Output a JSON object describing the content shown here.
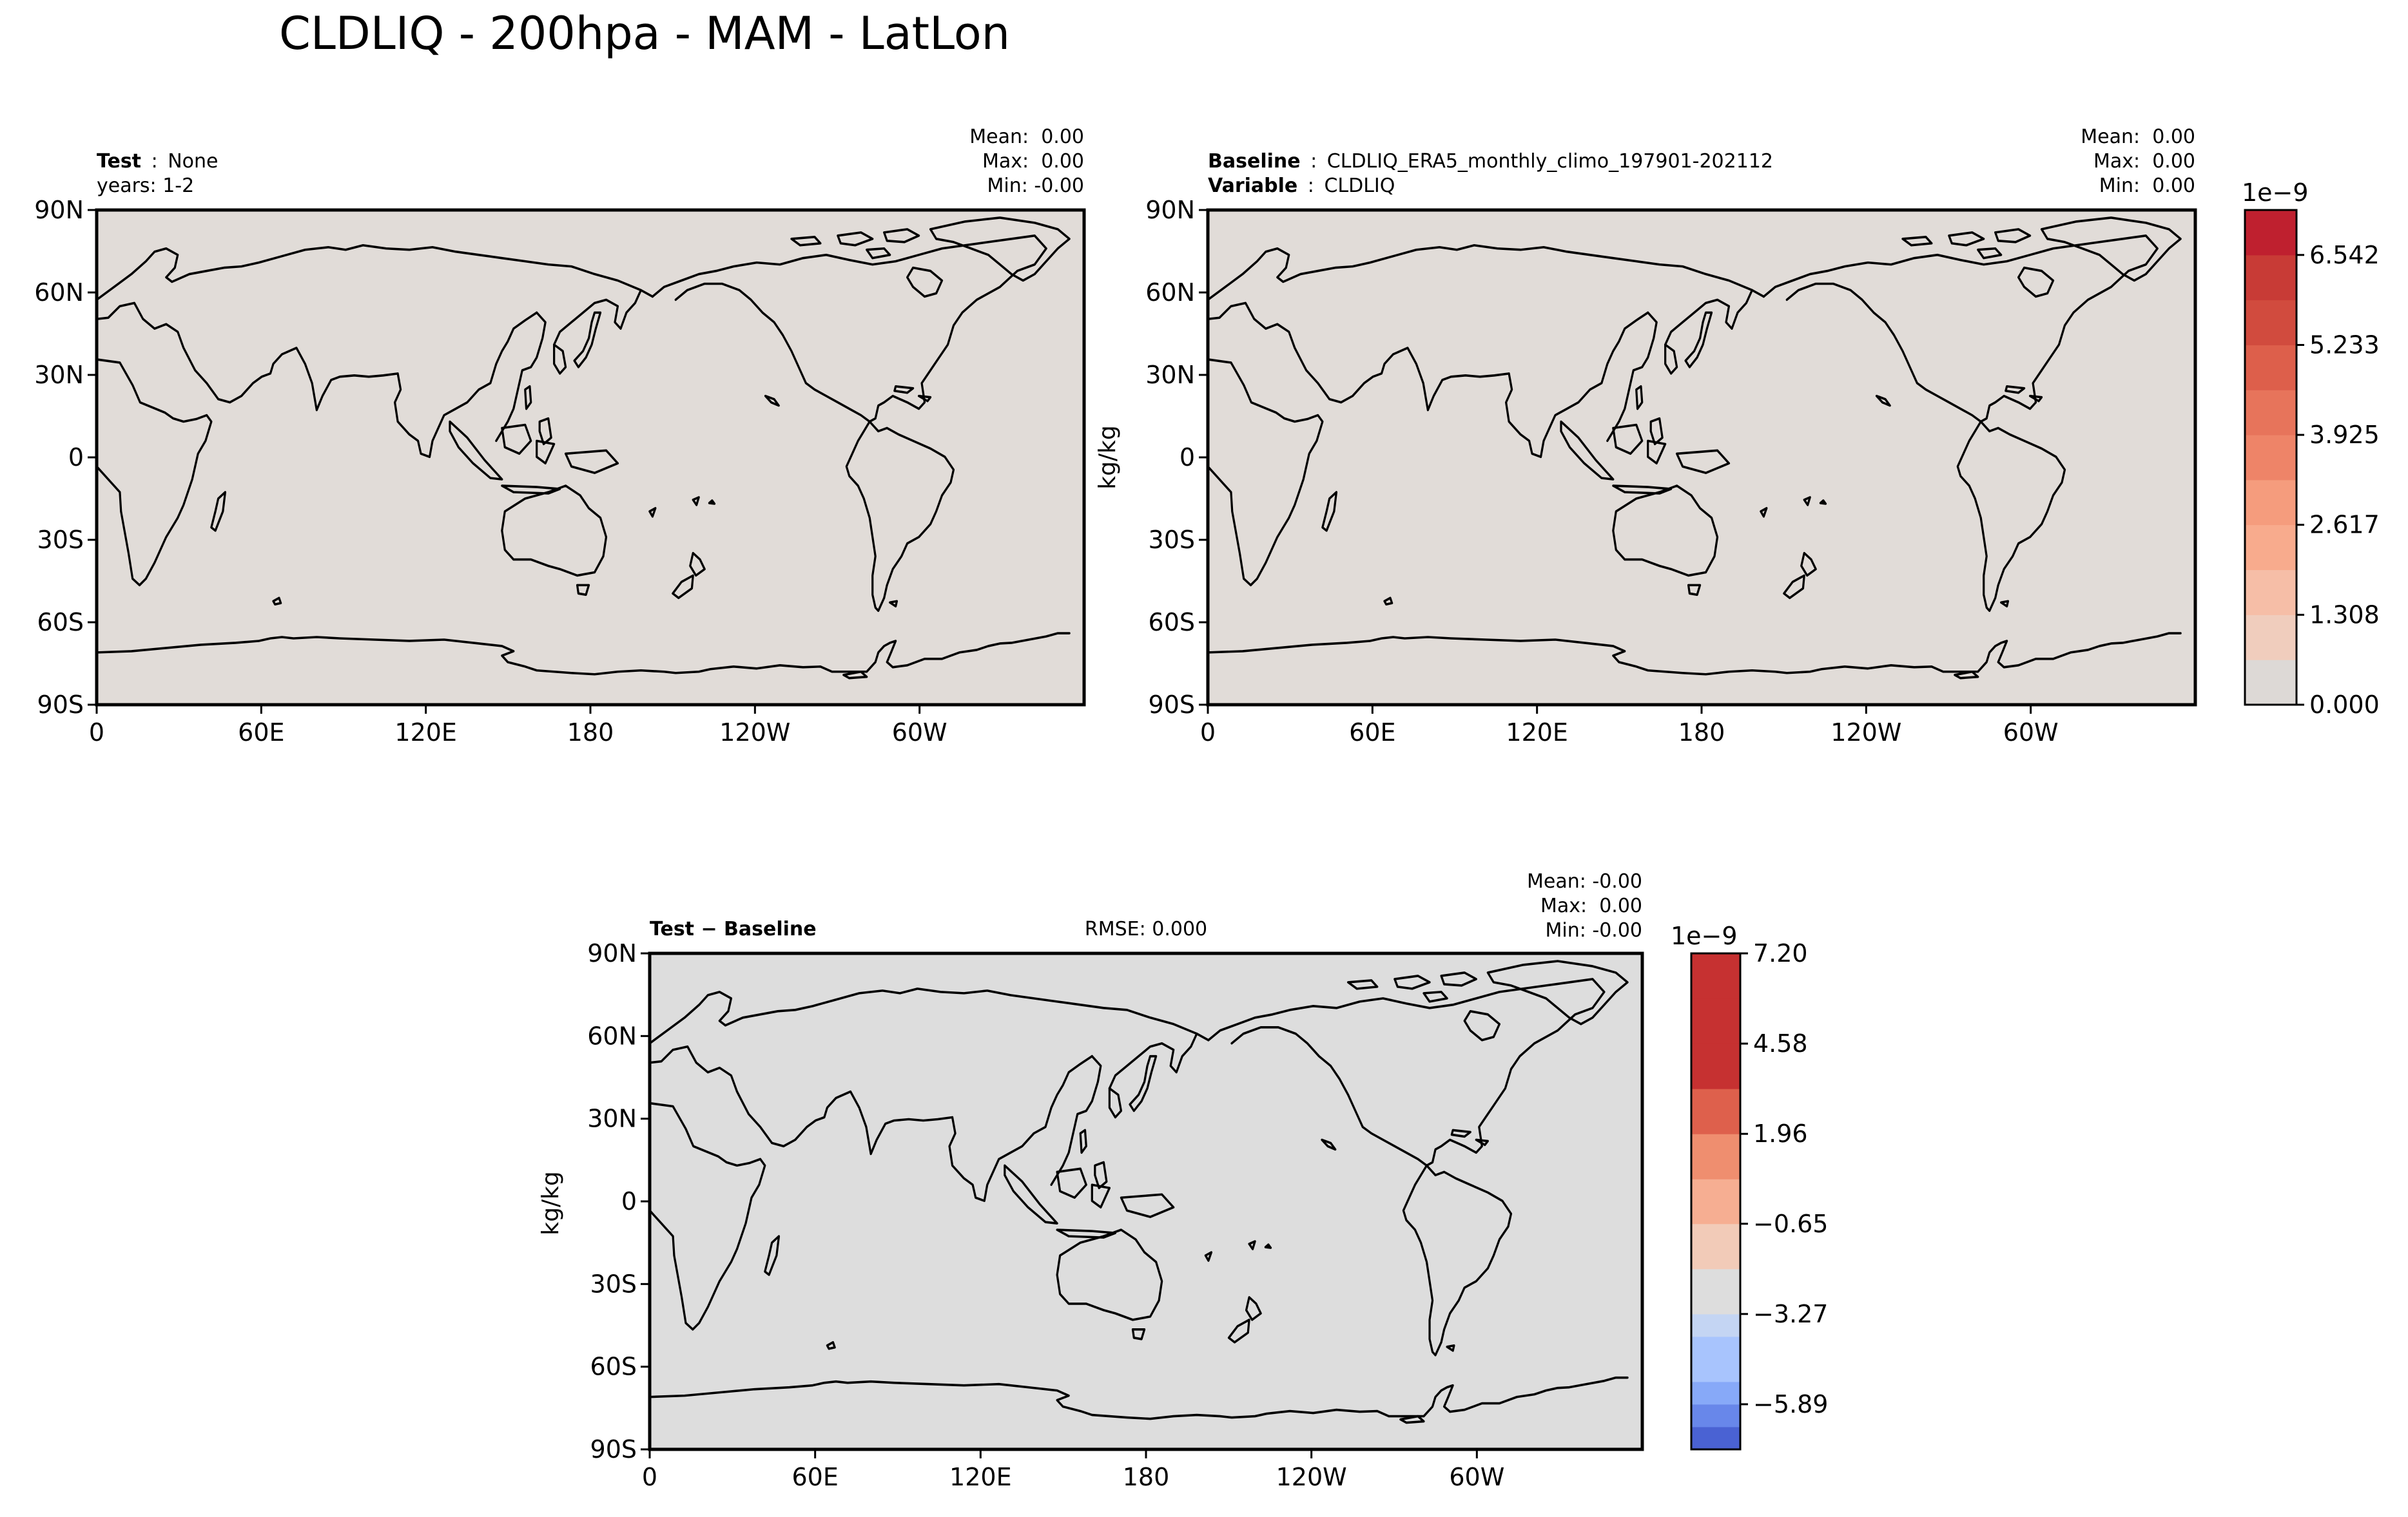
{
  "figure": {
    "title": "CLDLIQ - 200hpa - MAM - LatLon"
  },
  "chart_data": [
    {
      "type": "heatmap",
      "id": "test",
      "panel_label_bold": "Test",
      "panel_label_sep": ":",
      "panel_label_value": "None",
      "panel_label_line2": "years: 1-2",
      "stats": [
        "Mean:  0.00",
        "Max:  0.00",
        "Min: -0.00"
      ],
      "field_value": 0.0,
      "xlabel": "",
      "ylabel": "",
      "x_ticks": [
        "0",
        "60E",
        "120E",
        "180",
        "120W",
        "60W"
      ],
      "x_tick_lon": [
        0,
        60,
        120,
        180,
        240,
        300
      ],
      "xlim": [
        0,
        360
      ],
      "y_ticks": [
        "90N",
        "60N",
        "30N",
        "0",
        "30S",
        "60S",
        "90S"
      ],
      "y_tick_lat": [
        90,
        60,
        30,
        0,
        -30,
        -60,
        -90
      ],
      "ylim": [
        -90,
        90
      ]
    },
    {
      "type": "heatmap",
      "id": "baseline",
      "panel_label_bold": "Baseline",
      "panel_label_sep": ":",
      "panel_label_value": "CLDLIQ_ERA5_monthly_climo_197901-202112",
      "panel_label2_bold": "Variable",
      "panel_label2_value": "CLDLIQ",
      "stats": [
        "Mean:  0.00",
        "Max:  0.00",
        "Min:  0.00"
      ],
      "field_value": 0.0,
      "xlabel": "",
      "ylabel": "kg/kg",
      "x_ticks": [
        "0",
        "60E",
        "120E",
        "180",
        "120W",
        "60W"
      ],
      "x_tick_lon": [
        0,
        60,
        120,
        180,
        240,
        300
      ],
      "xlim": [
        0,
        360
      ],
      "y_ticks": [
        "90N",
        "60N",
        "30N",
        "0",
        "30S",
        "60S",
        "90S"
      ],
      "y_tick_lat": [
        90,
        60,
        30,
        0,
        -30,
        -60,
        -90
      ],
      "ylim": [
        -90,
        90
      ],
      "colorbar": {
        "exponent_label": "1e−9",
        "bounds": [
          0.0,
          0.654,
          1.308,
          1.963,
          2.617,
          3.271,
          3.925,
          4.579,
          5.233,
          5.888,
          6.542,
          7.196
        ],
        "tick_values": [
          0.0,
          1.308,
          2.617,
          3.925,
          5.233,
          6.542
        ],
        "tick_labels": [
          "0.000",
          "1.308",
          "2.617",
          "3.925",
          "5.233",
          "6.542"
        ],
        "colors": [
          "#ddd9d6",
          "#f0cdbd",
          "#f6bea7",
          "#f8ab8d",
          "#f59c7d",
          "#ee8468",
          "#e7745b",
          "#dd5f4b",
          "#d14b3e",
          "#c83b36",
          "#bf202f"
        ]
      }
    },
    {
      "type": "heatmap",
      "id": "diff",
      "panel_label_bold": "Test − Baseline",
      "rmse_label": "RMSE: 0.000",
      "stats": [
        "Mean: -0.00",
        "Max:  0.00",
        "Min: -0.00"
      ],
      "field_value": 0.0,
      "xlabel": "",
      "ylabel": "kg/kg",
      "x_ticks": [
        "0",
        "60E",
        "120E",
        "180",
        "120W",
        "60W"
      ],
      "x_tick_lon": [
        0,
        60,
        120,
        180,
        240,
        300
      ],
      "xlim": [
        0,
        360
      ],
      "y_ticks": [
        "90N",
        "60N",
        "30N",
        "0",
        "30S",
        "60S",
        "90S"
      ],
      "y_tick_lat": [
        90,
        60,
        30,
        0,
        -30,
        -60,
        -90
      ],
      "ylim": [
        -90,
        90
      ],
      "colorbar": {
        "exponent_label": "1e−9",
        "bounds": [
          -7.2,
          -6.545,
          -5.89,
          -5.235,
          -3.925,
          -3.27,
          -1.96,
          -0.65,
          0.65,
          1.96,
          3.27,
          4.58,
          5.89,
          7.2
        ],
        "tick_values": [
          -5.89,
          -3.27,
          -0.65,
          1.96,
          4.58,
          7.2
        ],
        "tick_labels": [
          "−5.89",
          "−3.27",
          "−0.65",
          "1.96",
          "4.58",
          "7.20"
        ],
        "colors": [
          "#4a62d3",
          "#6887ea",
          "#87a9f8",
          "#a8c4fd",
          "#c4d5f3",
          "#dddddd",
          "#f2cbb8",
          "#f6ae92",
          "#ef8e6f",
          "#de604c",
          "#c63131",
          "#c63131",
          "#c63131"
        ]
      }
    }
  ]
}
